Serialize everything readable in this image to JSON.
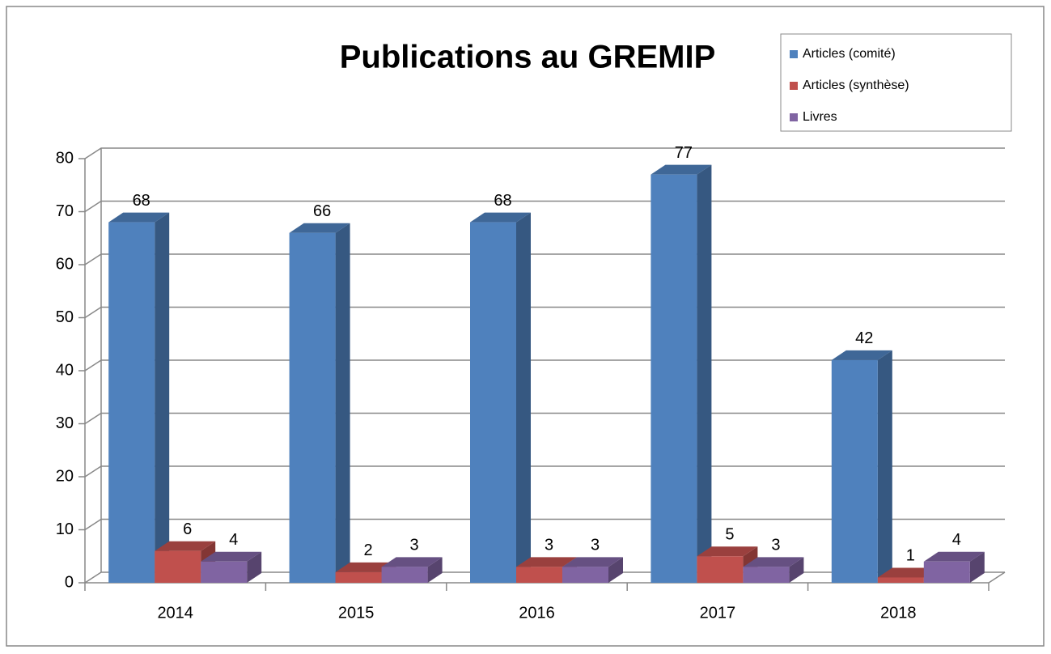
{
  "chart_data": {
    "type": "bar3d",
    "title": "Publications au GREMIP",
    "categories": [
      "2014",
      "2015",
      "2016",
      "2017",
      "2018"
    ],
    "series": [
      {
        "name": "Articles (comité)",
        "color": "#4f81bd",
        "values": [
          68,
          66,
          68,
          77,
          42
        ]
      },
      {
        "name": "Articles (synthèse)",
        "color": "#c0504d",
        "values": [
          6,
          2,
          3,
          5,
          1
        ]
      },
      {
        "name": "Livres",
        "color": "#8064a2",
        "values": [
          4,
          3,
          3,
          3,
          4
        ]
      }
    ],
    "ylim": [
      0,
      80
    ],
    "yticks": [
      0,
      10,
      20,
      30,
      40,
      50,
      60,
      70,
      80
    ],
    "grid": true,
    "legend": "top-right"
  }
}
